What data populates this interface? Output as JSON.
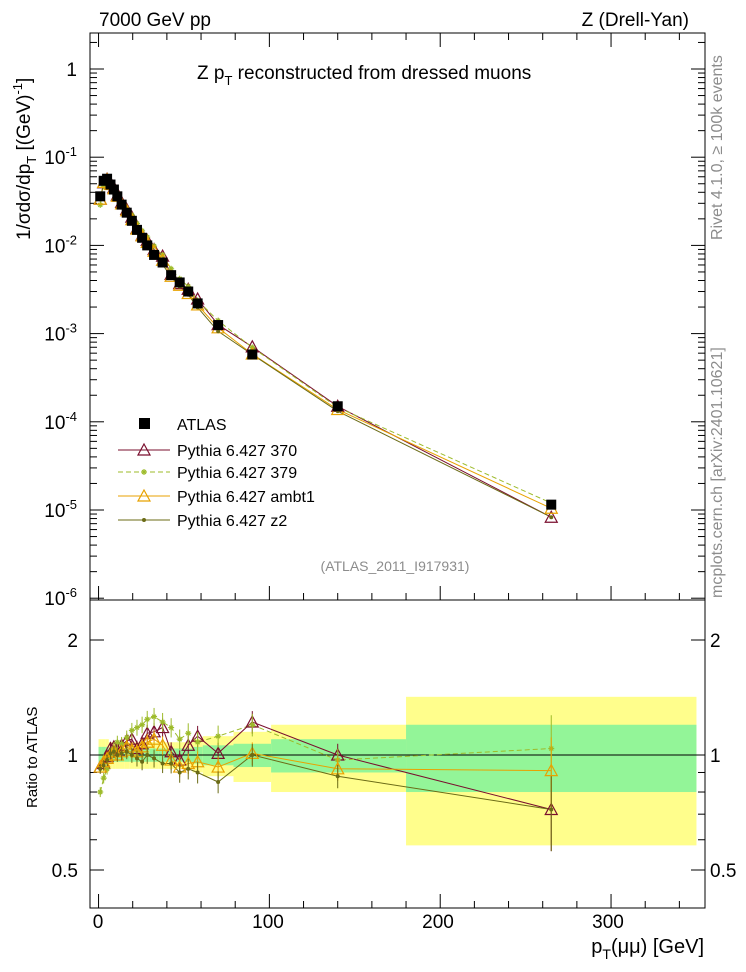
{
  "header": {
    "left": "7000 GeV pp",
    "right": "Z (Drell-Yan)",
    "subtitle_main": "Z p",
    "subtitle_sub": "T",
    "subtitle_rest": " reconstructed from dressed muons",
    "analysis_tag": "(ATLAS_2011_I917931)"
  },
  "side_labels": {
    "rivet": "Rivet 4.1.0, ≥ 100k events",
    "mcplots": "mcplots.cern.ch [arXiv:2401.10621]"
  },
  "axes": {
    "y_main_label_prefix": "1/σdσ/dp",
    "y_main_label_sub": "T",
    "y_main_label_units": " [(GeV)",
    "y_main_label_exp": "-1",
    "y_main_label_close": "]",
    "y_ratio_label": "Ratio to ATLAS",
    "x_label_p": "p",
    "x_label_sub": "T",
    "x_label_rest": "(μμ) [GeV]",
    "x_ticks": [
      "0",
      "100",
      "200",
      "300"
    ],
    "y_ratio_ticks": [
      "0.5",
      "1",
      "2"
    ]
  },
  "legend": {
    "atlas": "ATLAS",
    "p370": "Pythia 6.427 370",
    "p379": "Pythia 6.427 379",
    "ambt1": "Pythia 6.427 ambt1",
    "z2": "Pythia 6.427 z2"
  },
  "colors": {
    "data": "#000000",
    "p370": "#7a0f2e",
    "p379": "#9dbb2a",
    "ambt1": "#e8a200",
    "z2": "#6b6b16",
    "band_outer": "#fffe8c",
    "band_inner": "#93f598"
  },
  "chart_data": {
    "type": "scatter",
    "title": "Z pT reconstructed from dressed muons",
    "xlabel": "pT(μμ) [GeV]",
    "ylabel": "1/σdσ/dpT [(GeV)^-1]",
    "x_range": [
      -5,
      355
    ],
    "y_log_range": [
      1e-06,
      2.5
    ],
    "ratio_log_range": [
      0.4,
      2.5
    ],
    "x": [
      1,
      3,
      5,
      7,
      9,
      11,
      13.5,
      16.5,
      19.5,
      22.5,
      25.5,
      28.5,
      32.5,
      37.5,
      42.5,
      47.5,
      52.5,
      58,
      70,
      90,
      140,
      265
    ],
    "x_edges": [
      [
        0,
        2
      ],
      [
        2,
        4
      ],
      [
        4,
        6
      ],
      [
        6,
        8
      ],
      [
        8,
        10
      ],
      [
        10,
        12
      ],
      [
        12,
        15
      ],
      [
        15,
        18
      ],
      [
        18,
        21
      ],
      [
        21,
        24
      ],
      [
        24,
        27
      ],
      [
        27,
        30
      ],
      [
        30,
        35
      ],
      [
        35,
        40
      ],
      [
        40,
        45
      ],
      [
        45,
        50
      ],
      [
        50,
        55
      ],
      [
        55,
        61
      ],
      [
        61,
        79
      ],
      [
        79,
        101
      ],
      [
        101,
        180
      ],
      [
        180,
        350
      ]
    ],
    "atlas": [
      0.036,
      0.054,
      0.057,
      0.049,
      0.043,
      0.036,
      0.029,
      0.0235,
      0.019,
      0.015,
      0.0122,
      0.01,
      0.0078,
      0.0064,
      0.0046,
      0.0038,
      0.003,
      0.0022,
      0.00125,
      0.00058,
      0.00015,
      1.15e-05
    ],
    "atlas_err_outer": [
      0.1,
      0.1,
      0.1,
      0.08,
      0.08,
      0.08,
      0.08,
      0.08,
      0.08,
      0.08,
      0.08,
      0.08,
      0.08,
      0.08,
      0.08,
      0.08,
      0.08,
      0.1,
      0.12,
      0.15,
      0.2,
      0.42
    ],
    "atlas_err_inner": [
      0.05,
      0.05,
      0.05,
      0.04,
      0.04,
      0.04,
      0.04,
      0.04,
      0.04,
      0.04,
      0.04,
      0.04,
      0.04,
      0.04,
      0.04,
      0.04,
      0.04,
      0.05,
      0.06,
      0.07,
      0.1,
      0.2
    ],
    "series": [
      {
        "name": "Pythia 6.427 370",
        "key": "p370",
        "marker": "triangle",
        "dash": "",
        "ratio": [
          0.93,
          0.95,
          0.99,
          1.04,
          1.05,
          1.03,
          1.06,
          1.09,
          1.1,
          1.04,
          1.07,
          1.14,
          1.15,
          1.18,
          1.02,
          0.97,
          1.06,
          1.12,
          1.01,
          1.22,
          1.0,
          0.72
        ]
      },
      {
        "name": "Pythia 6.427 379",
        "key": "p379",
        "marker": "star",
        "dash": "5,3",
        "ratio": [
          0.8,
          0.87,
          0.92,
          1.0,
          1.04,
          1.08,
          1.07,
          1.11,
          1.16,
          1.18,
          1.2,
          1.24,
          1.26,
          1.22,
          1.18,
          1.1,
          1.14,
          1.08,
          1.12,
          1.2,
          0.97,
          1.04
        ]
      },
      {
        "name": "Pythia 6.427 ambt1",
        "key": "ambt1",
        "marker": "triangle",
        "dash": "",
        "ratio": [
          0.93,
          0.96,
          0.98,
          1.0,
          1.02,
          1.0,
          1.02,
          1.05,
          1.03,
          1.02,
          1.05,
          1.08,
          1.1,
          1.06,
          0.97,
          0.93,
          0.95,
          0.96,
          0.93,
          1.01,
          0.92,
          0.91
        ]
      },
      {
        "name": "Pythia 6.427 z2",
        "key": "z2",
        "marker": "dot",
        "dash": "",
        "ratio": [
          0.92,
          0.94,
          0.97,
          1.01,
          1.02,
          1.0,
          1.01,
          1.02,
          1.0,
          0.98,
          0.96,
          1.0,
          0.98,
          0.95,
          0.95,
          0.9,
          0.92,
          0.9,
          0.85,
          1.0,
          0.88,
          0.72
        ]
      }
    ]
  }
}
